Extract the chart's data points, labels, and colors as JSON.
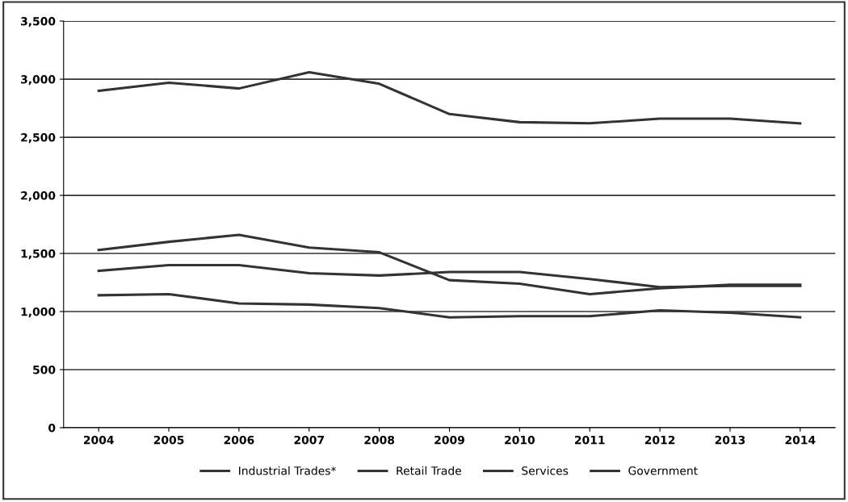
{
  "chart_data": {
    "type": "line",
    "categories": [
      "2004",
      "2005",
      "2006",
      "2007",
      "2008",
      "2009",
      "2010",
      "2011",
      "2012",
      "2013",
      "2014"
    ],
    "series": [
      {
        "name": "Industrial Trades*",
        "color": "#333333",
        "values": [
          2900,
          2970,
          2920,
          3060,
          2960,
          2700,
          2630,
          2620,
          2660,
          2660,
          2620
        ]
      },
      {
        "name": "Retail Trade",
        "color": "#333333",
        "values": [
          1530,
          1600,
          1660,
          1550,
          1510,
          1270,
          1240,
          1150,
          1200,
          1230,
          1230
        ]
      },
      {
        "name": "Services",
        "color": "#333333",
        "values": [
          1350,
          1400,
          1400,
          1330,
          1310,
          1340,
          1340,
          1280,
          1210,
          1220,
          1220
        ]
      },
      {
        "name": "Government",
        "color": "#333333",
        "values": [
          1140,
          1150,
          1070,
          1060,
          1030,
          950,
          960,
          960,
          1010,
          990,
          950
        ]
      }
    ],
    "ylim": [
      0,
      3500
    ],
    "yticks": [
      {
        "value": 0,
        "label": "0"
      },
      {
        "value": 500,
        "label": "500"
      },
      {
        "value": 1000,
        "label": "1,000"
      },
      {
        "value": 1500,
        "label": "1,500"
      },
      {
        "value": 2000,
        "label": "2,000"
      },
      {
        "value": 2500,
        "label": "2,500"
      },
      {
        "value": 3000,
        "label": "3,000"
      },
      {
        "value": 3500,
        "label": "3,500"
      }
    ],
    "grid": "y",
    "legend": "bottom",
    "marker": "none",
    "line_style": "solid"
  }
}
